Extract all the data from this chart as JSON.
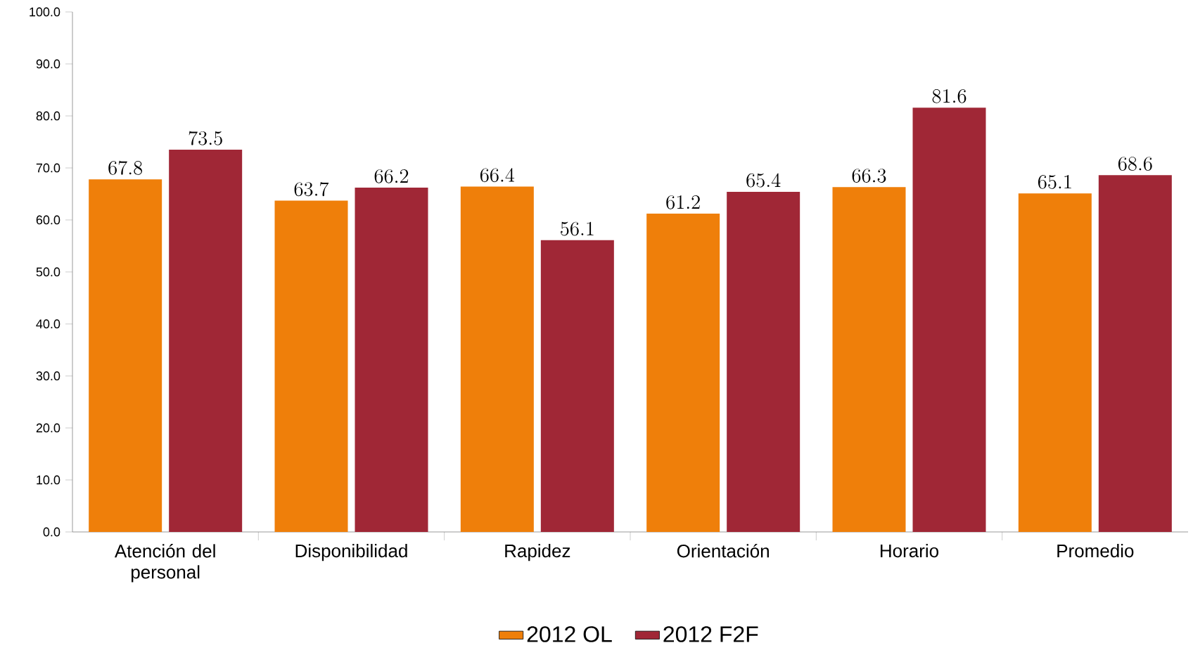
{
  "chart_data": {
    "type": "bar",
    "categories": [
      "Atención del personal",
      "Disponibilidad",
      "Rapidez",
      "Orientación",
      "Horario",
      "Promedio"
    ],
    "series": [
      {
        "name": "2012 OL",
        "color": "#ef7f0a",
        "values": [
          67.8,
          63.7,
          66.4,
          61.2,
          66.3,
          65.1
        ]
      },
      {
        "name": "2012 F2F",
        "color": "#a02736",
        "values": [
          73.5,
          66.2,
          56.1,
          65.4,
          81.6,
          68.6
        ]
      }
    ],
    "ylim": [
      0,
      100
    ],
    "yticks": [
      {
        "value": 0,
        "label": "0.0"
      },
      {
        "value": 10,
        "label": "10.0"
      },
      {
        "value": 20,
        "label": "20.0"
      },
      {
        "value": 30,
        "label": "30.0"
      },
      {
        "value": 40,
        "label": "40.0"
      },
      {
        "value": 50,
        "label": "50.0"
      },
      {
        "value": 60,
        "label": "60.0"
      },
      {
        "value": 70,
        "label": "70.0"
      },
      {
        "value": 80,
        "label": "80.0"
      },
      {
        "value": 90,
        "label": "90.0"
      },
      {
        "value": 100,
        "label": "100.0"
      }
    ],
    "data_labels": true,
    "grid": false,
    "legend": "bottom"
  }
}
